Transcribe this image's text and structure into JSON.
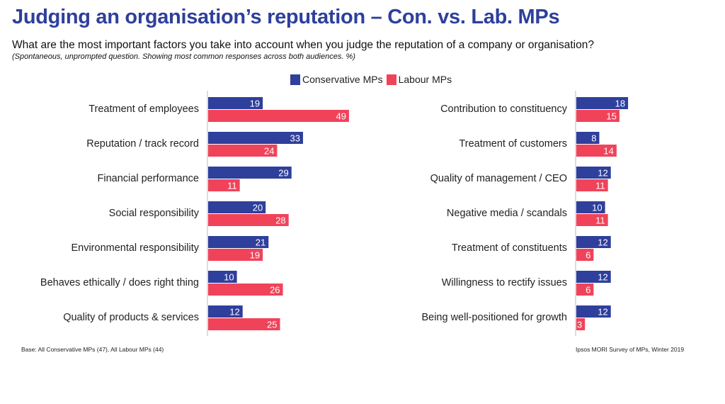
{
  "title": "Judging an organisation’s reputation – Con. vs. Lab. MPs",
  "subtitle": "What are the most important factors you take into account when you judge the reputation of a company or organisation?",
  "note": "(Spontaneous, unprompted question. Showing most common responses across both audiences. %)",
  "footer": {
    "base": "Base: All Conservative MPs (47), All Labour MPs (44)",
    "source": "Ipsos MORI Survey of MPs, Winter 2019"
  },
  "colors": {
    "conservative": "#2e3f9c",
    "labour": "#f0435a",
    "title": "#2e3f9c"
  },
  "chart_data": [
    {
      "type": "bar",
      "orientation": "horizontal",
      "categories": [
        "Treatment of employees",
        "Reputation / track record",
        "Financial performance",
        "Social responsibility",
        "Environmental responsibility",
        "Behaves ethically / does right thing",
        "Quality of products & services"
      ],
      "series": [
        {
          "name": "Conservative MPs",
          "values": [
            19,
            33,
            29,
            20,
            21,
            10,
            12
          ]
        },
        {
          "name": "Labour MPs",
          "values": [
            49,
            24,
            11,
            28,
            19,
            26,
            25
          ]
        }
      ],
      "xlim": [
        0,
        50
      ],
      "legend": "top",
      "grid": false
    },
    {
      "type": "bar",
      "orientation": "horizontal",
      "categories": [
        "Contribution to constituency",
        "Treatment of customers",
        "Quality of management / CEO",
        "Negative media / scandals",
        "Treatment of constituents",
        "Willingness to rectify issues",
        "Being well-positioned for growth"
      ],
      "series": [
        {
          "name": "Conservative MPs",
          "values": [
            18,
            8,
            12,
            10,
            12,
            12,
            12
          ]
        },
        {
          "name": "Labour MPs",
          "values": [
            15,
            14,
            11,
            11,
            6,
            6,
            3
          ]
        }
      ],
      "xlim": [
        0,
        50
      ],
      "legend": "top",
      "grid": false
    }
  ]
}
